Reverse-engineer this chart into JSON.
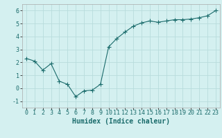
{
  "x": [
    0,
    1,
    2,
    3,
    4,
    5,
    6,
    7,
    8,
    9,
    10,
    11,
    12,
    13,
    14,
    15,
    16,
    17,
    18,
    19,
    20,
    21,
    22,
    23
  ],
  "y": [
    2.3,
    2.1,
    1.4,
    1.9,
    0.55,
    0.3,
    -0.65,
    -0.2,
    -0.15,
    0.3,
    3.2,
    3.85,
    4.35,
    4.8,
    5.05,
    5.2,
    5.1,
    5.2,
    5.3,
    5.3,
    5.35,
    5.45,
    5.6,
    6.0
  ],
  "line_color": "#1a6b6b",
  "marker": "+",
  "marker_size": 4,
  "bg_color": "#d4f0f0",
  "grid_color": "#b8dcdc",
  "xlabel": "Humidex (Indice chaleur)",
  "xlabel_fontsize": 7,
  "tick_fontsize": 6,
  "ylim": [
    -1.5,
    6.5
  ],
  "xlim": [
    -0.5,
    23.5
  ],
  "yticks": [
    -1,
    0,
    1,
    2,
    3,
    4,
    5,
    6
  ],
  "xticks": [
    0,
    1,
    2,
    3,
    4,
    5,
    6,
    7,
    8,
    9,
    10,
    11,
    12,
    13,
    14,
    15,
    16,
    17,
    18,
    19,
    20,
    21,
    22,
    23
  ]
}
